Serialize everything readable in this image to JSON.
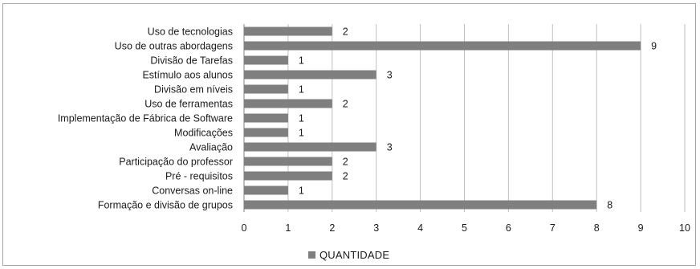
{
  "chart_data": {
    "type": "bar",
    "orientation": "horizontal",
    "categories": [
      "Uso de tecnologias",
      "Uso de outras abordagens",
      "Divisão de Tarefas",
      "Estímulo aos alunos",
      "Divisão em níveis",
      "Uso de ferramentas",
      "Implementação de Fábrica de Software",
      "Modificações",
      "Avaliação",
      "Participação do professor",
      "Pré - requisitos",
      "Conversas on-line",
      "Formação e divisão de grupos"
    ],
    "series": [
      {
        "name": "QUANTIDADE",
        "values": [
          2,
          9,
          1,
          3,
          1,
          2,
          1,
          1,
          3,
          2,
          2,
          1,
          8
        ],
        "color": "#7f7f7f"
      }
    ],
    "xlim": [
      0,
      10
    ],
    "x_ticks": [
      "0",
      "1",
      "2",
      "3",
      "4",
      "5",
      "6",
      "7",
      "8",
      "9",
      "10"
    ],
    "grid": true,
    "legend_position": "bottom",
    "data_labels": true
  },
  "colors": {
    "bar": "#7f7f7f",
    "grid": "#bfbfbf",
    "axis": "#808080",
    "text": "#1a1a1a"
  }
}
